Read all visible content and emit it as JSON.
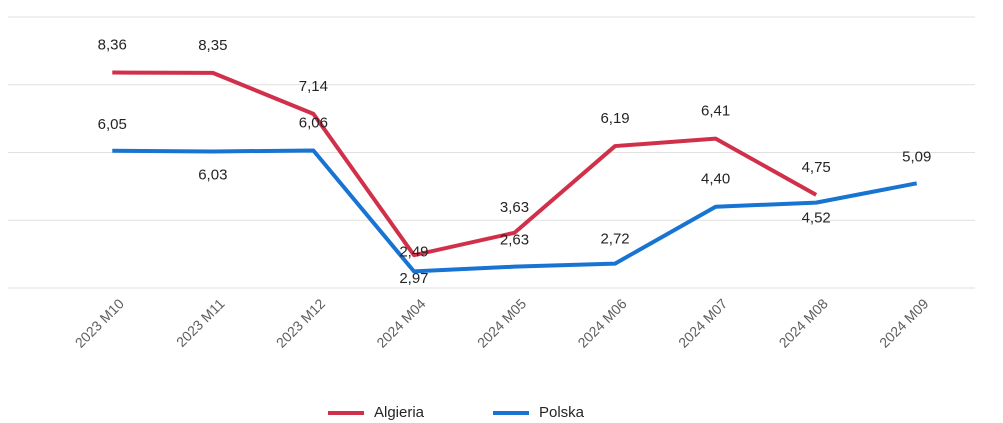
{
  "chart_data": {
    "type": "line",
    "categories": [
      "2023 M10",
      "2023 M11",
      "2023 M12",
      "2024 M04",
      "2024 M05",
      "2024 M06",
      "2024 M07",
      "2024 M08",
      "2024 M09"
    ],
    "series": [
      {
        "name": "Algieria",
        "color": "#d1304a",
        "values": [
          8.36,
          8.35,
          7.14,
          2.97,
          3.63,
          6.19,
          6.41,
          4.75,
          null
        ],
        "value_labels": [
          "8,36",
          "8,35",
          "7,14",
          "2,97",
          "3,63",
          "6,19",
          "6,41",
          "4,75",
          null
        ]
      },
      {
        "name": "Polska",
        "color": "#1874d2",
        "values": [
          6.05,
          6.03,
          6.06,
          2.49,
          2.63,
          2.72,
          4.4,
          4.52,
          5.09
        ],
        "value_labels": [
          "6,05",
          "6,03",
          "6,06",
          "2,49",
          "2,63",
          "2,72",
          "4,40",
          "4,52",
          "5,09"
        ]
      }
    ],
    "ylim": [
      2,
      10
    ],
    "yticks": [
      2,
      4,
      6,
      8,
      10
    ],
    "grid": true,
    "legend": "bottom"
  }
}
